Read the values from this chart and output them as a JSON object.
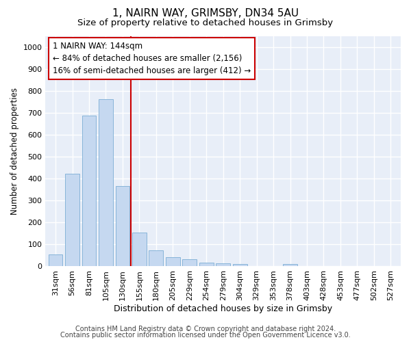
{
  "title": "1, NAIRN WAY, GRIMSBY, DN34 5AU",
  "subtitle": "Size of property relative to detached houses in Grimsby",
  "xlabel": "Distribution of detached houses by size in Grimsby",
  "ylabel": "Number of detached properties",
  "categories": [
    "31sqm",
    "56sqm",
    "81sqm",
    "105sqm",
    "130sqm",
    "155sqm",
    "180sqm",
    "205sqm",
    "229sqm",
    "254sqm",
    "279sqm",
    "304sqm",
    "329sqm",
    "353sqm",
    "378sqm",
    "403sqm",
    "428sqm",
    "453sqm",
    "477sqm",
    "502sqm",
    "527sqm"
  ],
  "values": [
    52,
    422,
    685,
    760,
    365,
    152,
    73,
    40,
    30,
    17,
    11,
    10,
    0,
    0,
    8,
    0,
    0,
    0,
    0,
    0,
    0
  ],
  "bar_color": "#c5d8f0",
  "bar_edge_color": "#7aadd4",
  "vline_x": 4.5,
  "vline_color": "#cc0000",
  "annotation_text": "1 NAIRN WAY: 144sqm\n← 84% of detached houses are smaller (2,156)\n16% of semi-detached houses are larger (412) →",
  "annotation_box_color": "#ffffff",
  "annotation_box_edge": "#cc0000",
  "ylim": [
    0,
    1050
  ],
  "yticks": [
    0,
    100,
    200,
    300,
    400,
    500,
    600,
    700,
    800,
    900,
    1000
  ],
  "footer_line1": "Contains HM Land Registry data © Crown copyright and database right 2024.",
  "footer_line2": "Contains public sector information licensed under the Open Government Licence v3.0.",
  "bg_color": "#ffffff",
  "plot_bg_color": "#e8eef8",
  "grid_color": "#ffffff",
  "title_fontsize": 11,
  "subtitle_fontsize": 9.5,
  "xlabel_fontsize": 9,
  "ylabel_fontsize": 8.5,
  "tick_fontsize": 8,
  "annotation_fontsize": 8.5,
  "footer_fontsize": 7
}
